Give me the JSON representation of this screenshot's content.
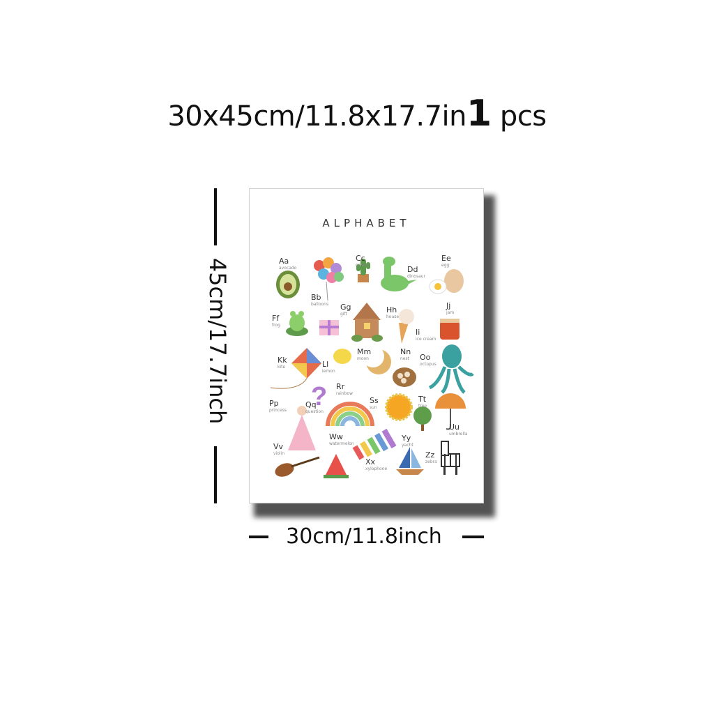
{
  "header": {
    "size_text": "30x45cm/11.8x17.7in",
    "qty_num": "1",
    "qty_unit": "pcs"
  },
  "height_label": "45cm/17.7inch",
  "width_label": "30cm/11.8inch",
  "poster": {
    "title": "ALPHABET",
    "letters": [
      {
        "l": "Aa",
        "w": "avocado"
      },
      {
        "l": "Bb",
        "w": "balloons"
      },
      {
        "l": "Cc",
        "w": "cactus"
      },
      {
        "l": "Dd",
        "w": "dinosaur"
      },
      {
        "l": "Ee",
        "w": "egg"
      },
      {
        "l": "Ff",
        "w": "frog"
      },
      {
        "l": "Gg",
        "w": "gift"
      },
      {
        "l": "Hh",
        "w": "house"
      },
      {
        "l": "Ii",
        "w": "ice cream"
      },
      {
        "l": "Jj",
        "w": "jam"
      },
      {
        "l": "Kk",
        "w": "kite"
      },
      {
        "l": "Ll",
        "w": "lemon"
      },
      {
        "l": "Mm",
        "w": "moon"
      },
      {
        "l": "Nn",
        "w": "nest"
      },
      {
        "l": "Oo",
        "w": "octopus"
      },
      {
        "l": "Pp",
        "w": "princess"
      },
      {
        "l": "Qq",
        "w": "question"
      },
      {
        "l": "Rr",
        "w": "rainbow"
      },
      {
        "l": "Ss",
        "w": "sun"
      },
      {
        "l": "Tt",
        "w": "tree"
      },
      {
        "l": "Uu",
        "w": "umbrella"
      },
      {
        "l": "Vv",
        "w": "violin"
      },
      {
        "l": "Ww",
        "w": "watermelon"
      },
      {
        "l": "Xx",
        "w": "xylophone"
      },
      {
        "l": "Yy",
        "w": "yacht"
      },
      {
        "l": "Zz",
        "w": "zebra"
      }
    ]
  }
}
